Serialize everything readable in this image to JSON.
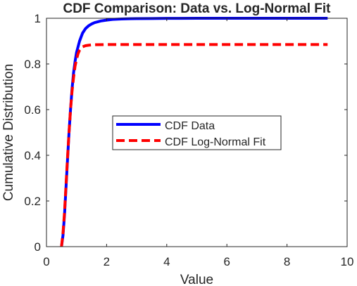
{
  "chart_data": {
    "type": "line",
    "title": "CDF Comparison: Data vs. Log-Normal Fit",
    "xlabel": "Value",
    "ylabel": "Cumulative Distribution",
    "xlim": [
      0,
      10
    ],
    "ylim": [
      0,
      1
    ],
    "xticks": [
      "0",
      "2",
      "4",
      "6",
      "8",
      "10"
    ],
    "yticks": [
      "0",
      "0.2",
      "0.4",
      "0.6",
      "0.8",
      "1"
    ],
    "grid": false,
    "legend_position": "center",
    "series": [
      {
        "name": "CDF Data",
        "color": "#0000ff",
        "style": "solid",
        "x": [
          0.5,
          0.55,
          0.6,
          0.65,
          0.7,
          0.75,
          0.8,
          0.85,
          0.9,
          0.95,
          1.0,
          1.1,
          1.2,
          1.3,
          1.4,
          1.5,
          1.6,
          1.8,
          2.0,
          2.2,
          2.5,
          2.8,
          3.0,
          3.5,
          4.0,
          5.0,
          6.0,
          7.0,
          8.0,
          9.35
        ],
        "y": [
          0.0,
          0.05,
          0.14,
          0.26,
          0.38,
          0.5,
          0.6,
          0.69,
          0.76,
          0.81,
          0.85,
          0.9,
          0.935,
          0.955,
          0.967,
          0.975,
          0.981,
          0.988,
          0.992,
          0.995,
          0.997,
          0.998,
          0.9985,
          0.999,
          0.9995,
          1.0,
          1.0,
          1.0,
          1.0,
          1.0
        ]
      },
      {
        "name": "CDF Log-Normal Fit",
        "color": "#ff0000",
        "style": "dashed",
        "x": [
          0.5,
          0.55,
          0.6,
          0.65,
          0.7,
          0.75,
          0.8,
          0.85,
          0.9,
          0.95,
          1.0,
          1.05,
          1.1,
          1.15,
          1.2,
          1.3,
          1.4,
          1.5,
          1.6,
          2.0,
          3.0,
          5.0,
          7.0,
          9.35
        ],
        "y": [
          0.0,
          0.06,
          0.15,
          0.27,
          0.39,
          0.5,
          0.6,
          0.68,
          0.74,
          0.79,
          0.82,
          0.845,
          0.86,
          0.869,
          0.875,
          0.88,
          0.882,
          0.8835,
          0.884,
          0.885,
          0.885,
          0.885,
          0.885,
          0.885
        ]
      }
    ]
  }
}
